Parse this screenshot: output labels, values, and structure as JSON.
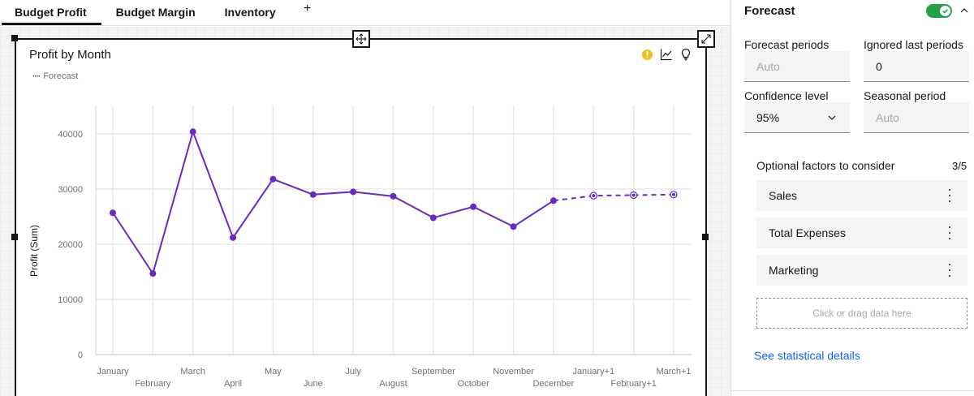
{
  "tabs": [
    {
      "label": "Budget Profit",
      "active": true
    },
    {
      "label": "Budget Margin",
      "active": false
    },
    {
      "label": "Inventory",
      "active": false
    }
  ],
  "tab_add_label": "+",
  "widget": {
    "title": "Profit by Month",
    "legend_label": "Forecast",
    "legend_marker": "····",
    "icons": [
      "warning-icon",
      "chart-type-icon",
      "insights-lightbulb-icon"
    ],
    "move_icon": "move-icon",
    "expand_icon": "expand-icon"
  },
  "chart_data": {
    "type": "line",
    "title": "Profit by Month",
    "xlabel": "",
    "ylabel": "Profit (Sum)",
    "ylim": [
      0,
      45000
    ],
    "yticks": [
      0,
      10000,
      20000,
      30000,
      40000
    ],
    "grid": true,
    "legend": {
      "position": "top-left",
      "entries": [
        "Forecast"
      ]
    },
    "categories": [
      "January",
      "February",
      "March",
      "April",
      "May",
      "June",
      "July",
      "August",
      "September",
      "October",
      "November",
      "December",
      "January+1",
      "February+1",
      "March+1"
    ],
    "series": [
      {
        "name": "Profit (Sum)",
        "style": "solid",
        "color": "#6929c4",
        "values": [
          25700,
          14700,
          40400,
          21200,
          31800,
          29000,
          29500,
          28700,
          24800,
          26800,
          23200,
          27900,
          null,
          null,
          null
        ]
      },
      {
        "name": "Forecast",
        "style": "dashed",
        "color": "#6929c4",
        "values": [
          null,
          null,
          null,
          null,
          null,
          null,
          null,
          null,
          null,
          null,
          null,
          27900,
          28800,
          28900,
          29000
        ]
      }
    ]
  },
  "panel": {
    "title": "Forecast",
    "toggle_on": true,
    "accent_color": "#24a148",
    "fields": {
      "forecast_periods": {
        "label": "Forecast periods",
        "placeholder": "Auto",
        "value": ""
      },
      "ignored_last_periods": {
        "label": "Ignored last periods",
        "value": "0"
      },
      "confidence_level": {
        "label": "Confidence level",
        "value": "95%"
      },
      "seasonal_period": {
        "label": "Seasonal period",
        "placeholder": "Auto",
        "value": ""
      }
    },
    "factors_title": "Optional factors to consider",
    "factors_count": "3/5",
    "factors": [
      {
        "label": "Sales"
      },
      {
        "label": "Total Expenses"
      },
      {
        "label": "Marketing"
      }
    ],
    "dropzone_label": "Click or drag data here",
    "stats_link": "See statistical details",
    "link_color": "#0f62fe"
  }
}
